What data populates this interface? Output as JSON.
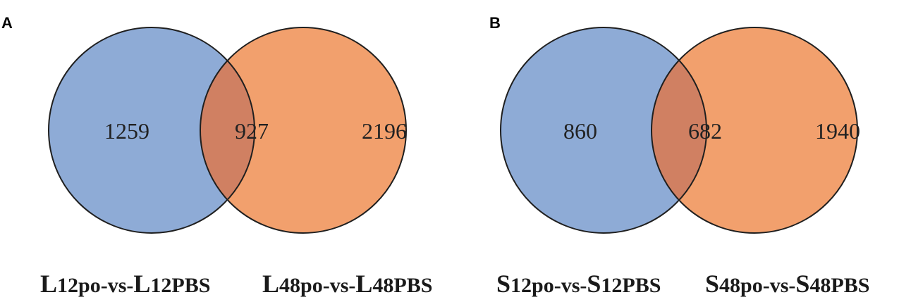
{
  "panels": [
    {
      "letter": "A",
      "left_count": "1259",
      "overlap_count": "927",
      "right_count": "2196",
      "left_label": {
        "lead": "L",
        "rest": "12po-vs-",
        "lead2": "L",
        "rest2": "12PBS"
      },
      "right_label": {
        "lead": "L",
        "rest": "48po-vs-",
        "lead2": "L",
        "rest2": "48PBS"
      }
    },
    {
      "letter": "B",
      "left_count": "860",
      "overlap_count": "682",
      "right_count": "1940",
      "left_label": {
        "lead": "S",
        "rest": "12po-vs-",
        "lead2": "S",
        "rest2": "12PBS"
      },
      "right_label": {
        "lead": "S",
        "rest": "48po-vs-",
        "lead2": "S",
        "rest2": "48PBS"
      }
    }
  ],
  "colors": {
    "left_circle": "#8eabd6",
    "right_circle": "#f2a06d",
    "overlap": "#d08062",
    "stroke": "#1f1f1f"
  }
}
